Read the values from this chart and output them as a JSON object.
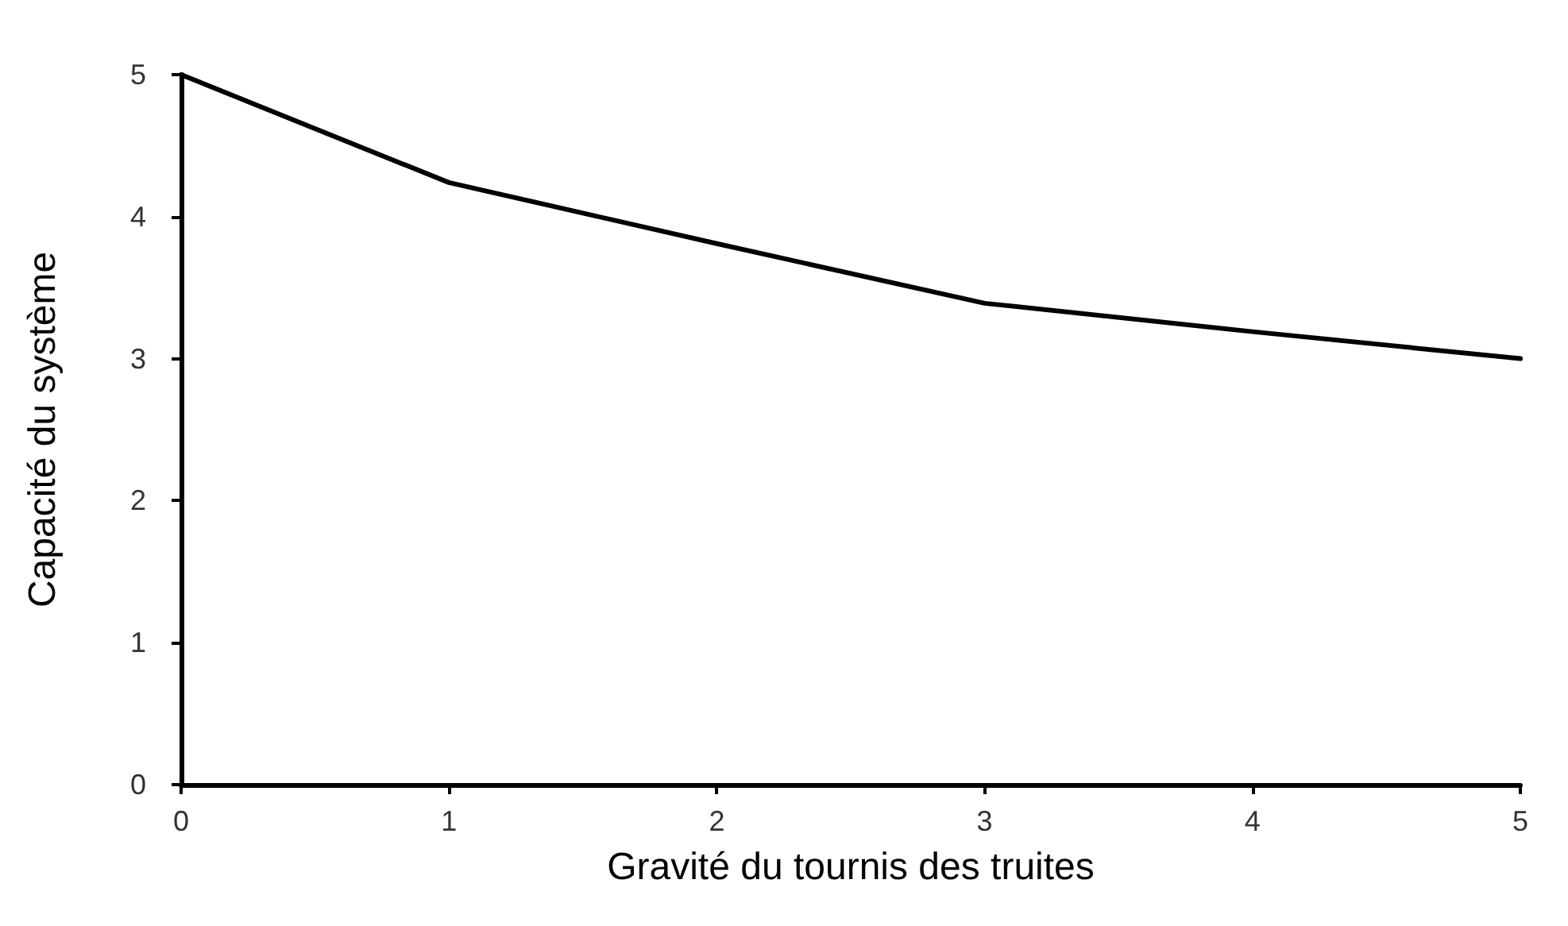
{
  "chart_data": {
    "type": "line",
    "xlabel": "Gravité du tournis des truites",
    "ylabel": "Capacité du système",
    "x": [
      0,
      1,
      2,
      3,
      4,
      5
    ],
    "series": [
      {
        "color": "#000000",
        "values": [
          5,
          4.24,
          3.81,
          3.39,
          3.19,
          3.0
        ]
      }
    ],
    "xlim": [
      0,
      5
    ],
    "xticks": [
      0,
      1,
      2,
      3,
      4,
      5
    ],
    "ylim": [
      0,
      5
    ],
    "yticks": [
      0,
      1,
      2,
      3,
      4,
      5
    ],
    "grid": false,
    "marker": "none",
    "line_style": "solid"
  }
}
